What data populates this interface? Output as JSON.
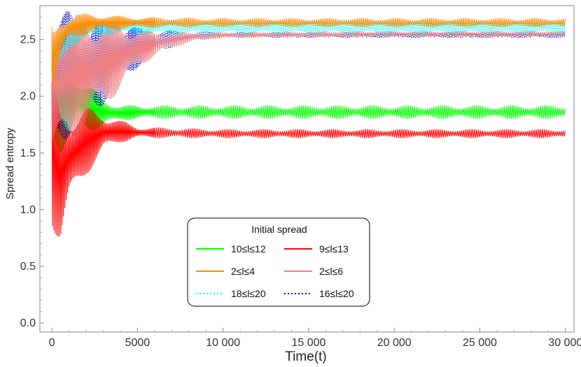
{
  "chart_data": {
    "type": "line",
    "title": "",
    "xlabel": "Time(t)",
    "ylabel": "Spread entropy",
    "xlim": [
      -700,
      30500
    ],
    "ylim": [
      -0.08,
      2.8
    ],
    "xticks": [
      0,
      5000,
      10000,
      15000,
      20000,
      25000,
      30000
    ],
    "xtick_labels": [
      "0",
      "5000",
      "10 000",
      "15 000",
      "20 000",
      "25 000",
      "30 000"
    ],
    "yticks": [
      0.0,
      0.5,
      1.0,
      1.5,
      2.0,
      2.5
    ],
    "ytick_labels": [
      "0.0",
      "0.5",
      "1.0",
      "1.5",
      "2.0",
      "2.5"
    ],
    "grid": false,
    "legend_title": "Initial spread",
    "legend_position": "bottom-center",
    "series": [
      {
        "name": "10≤l≤12",
        "color": "#00ff00",
        "style": "solid",
        "x": [
          0,
          500,
          1000,
          2000,
          3000,
          4000,
          5000,
          10000,
          20000,
          30000
        ],
        "y": [
          2.0,
          1.95,
          1.95,
          1.9,
          1.86,
          1.85,
          1.86,
          1.86,
          1.86,
          1.86
        ],
        "band": [
          [
            0,
            0.8
          ],
          [
            500,
            0.9
          ],
          [
            1000,
            0.75
          ],
          [
            2000,
            0.45
          ],
          [
            3000,
            0.25
          ],
          [
            4000,
            0.14
          ],
          [
            5000,
            0.12
          ],
          [
            10000,
            0.12
          ],
          [
            30000,
            0.12
          ]
        ]
      },
      {
        "name": "9≤l≤13",
        "color": "#ff0000",
        "style": "solid",
        "x": [
          0,
          500,
          1000,
          2000,
          3000,
          4000,
          5000,
          10000,
          20000,
          30000
        ],
        "y": [
          1.5,
          1.3,
          1.45,
          1.6,
          1.68,
          1.69,
          1.68,
          1.67,
          1.67,
          1.67
        ],
        "band": [
          [
            0,
            1.3
          ],
          [
            500,
            1.2
          ],
          [
            1000,
            0.9
          ],
          [
            2000,
            0.6
          ],
          [
            3000,
            0.35
          ],
          [
            4000,
            0.2
          ],
          [
            5000,
            0.1
          ],
          [
            10000,
            0.08
          ],
          [
            30000,
            0.08
          ]
        ]
      },
      {
        "name": "2≤l≤4",
        "color": "#ff8c00",
        "style": "solid",
        "x": [
          0,
          500,
          1000,
          2000,
          3000,
          4000,
          6000,
          10000,
          20000,
          30000
        ],
        "y": [
          2.3,
          2.5,
          2.6,
          2.64,
          2.65,
          2.65,
          2.65,
          2.65,
          2.65,
          2.65
        ],
        "band": [
          [
            0,
            0.5
          ],
          [
            1000,
            0.22
          ],
          [
            3000,
            0.14
          ],
          [
            5000,
            0.1
          ],
          [
            10000,
            0.08
          ],
          [
            30000,
            0.08
          ]
        ]
      },
      {
        "name": "2≤l≤6",
        "color": "#f08080",
        "style": "solid",
        "x": [
          0,
          500,
          1000,
          2000,
          3000,
          4000,
          5000,
          6000,
          8000,
          10000,
          20000,
          30000
        ],
        "y": [
          2.1,
          2.1,
          2.15,
          2.2,
          2.3,
          2.35,
          2.42,
          2.46,
          2.52,
          2.54,
          2.55,
          2.55
        ],
        "band": [
          [
            0,
            1.3
          ],
          [
            1000,
            1.2
          ],
          [
            2000,
            1.0
          ],
          [
            3000,
            0.8
          ],
          [
            4000,
            0.6
          ],
          [
            5000,
            0.35
          ],
          [
            6000,
            0.22
          ],
          [
            8000,
            0.09
          ],
          [
            10000,
            0.05
          ],
          [
            30000,
            0.05
          ]
        ]
      },
      {
        "name": "18≤l≤20",
        "color": "#00ffff",
        "style": "dotted",
        "x": [
          0,
          500,
          1000,
          2000,
          3000,
          4000,
          6000,
          10000,
          20000,
          30000
        ],
        "y": [
          2.3,
          2.45,
          2.55,
          2.6,
          2.61,
          2.62,
          2.61,
          2.61,
          2.61,
          2.61
        ],
        "band": [
          [
            0,
            0.5
          ],
          [
            1000,
            0.25
          ],
          [
            3000,
            0.15
          ],
          [
            5000,
            0.14
          ],
          [
            10000,
            0.13
          ],
          [
            30000,
            0.13
          ]
        ]
      },
      {
        "name": "16≤l≤20",
        "color": "#0000cd",
        "style": "dotted",
        "x": [
          0,
          500,
          1000,
          2000,
          3000,
          4000,
          5000,
          6000,
          8000,
          10000,
          20000,
          30000
        ],
        "y": [
          2.15,
          2.15,
          2.2,
          2.25,
          2.3,
          2.38,
          2.43,
          2.48,
          2.53,
          2.54,
          2.54,
          2.54
        ],
        "band": [
          [
            0,
            1.3
          ],
          [
            1000,
            1.1
          ],
          [
            2000,
            0.9
          ],
          [
            3000,
            0.75
          ],
          [
            4000,
            0.55
          ],
          [
            5000,
            0.35
          ],
          [
            6000,
            0.22
          ],
          [
            8000,
            0.08
          ],
          [
            10000,
            0.05
          ],
          [
            30000,
            0.05
          ]
        ]
      }
    ]
  }
}
